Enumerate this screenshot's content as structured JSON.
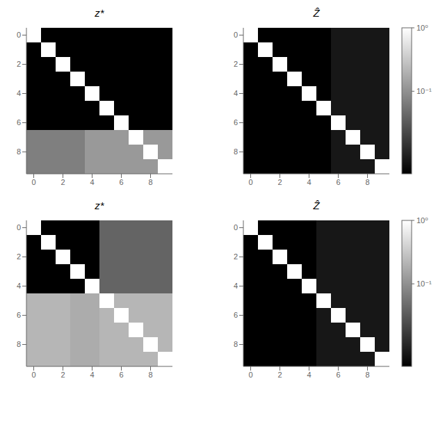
{
  "chart_data": [
    {
      "type": "heatmap",
      "title": "z*",
      "xlim": [
        -0.5,
        9.5
      ],
      "ylim": [
        9.5,
        -0.5
      ],
      "xticks": [
        0,
        2,
        4,
        6,
        8
      ],
      "yticks": [
        0,
        2,
        4,
        6,
        8
      ],
      "color_scale": {
        "range": [
          0.005,
          1.0
        ],
        "log": true
      },
      "cells": [
        [
          1.0,
          0.005,
          0.005,
          0.005,
          0.005,
          0.005,
          0.005,
          0.005,
          0.005,
          0.005
        ],
        [
          0.005,
          1.0,
          0.005,
          0.005,
          0.005,
          0.005,
          0.005,
          0.005,
          0.005,
          0.005
        ],
        [
          0.005,
          0.005,
          1.0,
          0.005,
          0.005,
          0.005,
          0.005,
          0.005,
          0.005,
          0.005
        ],
        [
          0.005,
          0.005,
          0.005,
          1.0,
          0.005,
          0.005,
          0.005,
          0.005,
          0.005,
          0.005
        ],
        [
          0.005,
          0.005,
          0.005,
          0.005,
          1.0,
          0.005,
          0.005,
          0.005,
          0.005,
          0.005
        ],
        [
          0.005,
          0.005,
          0.005,
          0.005,
          0.005,
          1.0,
          0.005,
          0.005,
          0.005,
          0.005
        ],
        [
          0.005,
          0.005,
          0.005,
          0.005,
          0.005,
          0.005,
          1.0,
          0.005,
          0.005,
          0.005
        ],
        [
          0.07,
          0.07,
          0.07,
          0.07,
          0.12,
          0.12,
          0.12,
          1.0,
          0.12,
          0.12
        ],
        [
          0.07,
          0.07,
          0.07,
          0.07,
          0.12,
          0.12,
          0.12,
          0.12,
          1.0,
          0.12
        ],
        [
          0.07,
          0.07,
          0.07,
          0.07,
          0.12,
          0.12,
          0.12,
          0.12,
          0.12,
          1.0
        ]
      ]
    },
    {
      "type": "heatmap",
      "title": "Ẑ",
      "xlim": [
        -0.5,
        9.5
      ],
      "ylim": [
        9.5,
        -0.5
      ],
      "xticks": [
        0,
        2,
        4,
        6,
        8
      ],
      "yticks": [
        0,
        2,
        4,
        6,
        8
      ],
      "color_scale": {
        "range": [
          0.005,
          1.0
        ],
        "log": true,
        "ticks": [
          {
            "value": 0.1,
            "label": "10⁻¹"
          },
          {
            "value": 1.0,
            "label": "10⁰"
          }
        ]
      },
      "cells": [
        [
          1.0,
          0.005,
          0.005,
          0.005,
          0.005,
          0.005,
          0.008,
          0.008,
          0.008,
          0.008
        ],
        [
          0.005,
          1.0,
          0.005,
          0.005,
          0.005,
          0.005,
          0.008,
          0.008,
          0.008,
          0.008
        ],
        [
          0.005,
          0.005,
          1.0,
          0.005,
          0.005,
          0.005,
          0.008,
          0.008,
          0.008,
          0.008
        ],
        [
          0.005,
          0.005,
          0.005,
          1.0,
          0.005,
          0.005,
          0.008,
          0.008,
          0.008,
          0.008
        ],
        [
          0.005,
          0.005,
          0.005,
          0.005,
          1.0,
          0.005,
          0.008,
          0.008,
          0.008,
          0.008
        ],
        [
          0.005,
          0.005,
          0.005,
          0.005,
          0.005,
          1.0,
          0.008,
          0.008,
          0.008,
          0.008
        ],
        [
          0.005,
          0.005,
          0.005,
          0.005,
          0.005,
          0.005,
          1.0,
          0.008,
          0.008,
          0.008
        ],
        [
          0.005,
          0.005,
          0.005,
          0.005,
          0.005,
          0.005,
          0.008,
          1.0,
          0.008,
          0.008
        ],
        [
          0.005,
          0.005,
          0.005,
          0.005,
          0.005,
          0.005,
          0.008,
          0.008,
          1.0,
          0.008
        ],
        [
          0.005,
          0.005,
          0.005,
          0.005,
          0.005,
          0.005,
          0.008,
          0.008,
          0.008,
          1.0
        ]
      ]
    },
    {
      "type": "heatmap",
      "title": "z*",
      "xlim": [
        -0.5,
        9.5
      ],
      "ylim": [
        9.5,
        -0.5
      ],
      "xticks": [
        0,
        2,
        4,
        6,
        8
      ],
      "yticks": [
        0,
        2,
        4,
        6,
        8
      ],
      "color_scale": {
        "range": [
          0.005,
          1.0
        ],
        "log": true
      },
      "cells": [
        [
          1.0,
          0.005,
          0.005,
          0.005,
          0.005,
          0.04,
          0.04,
          0.04,
          0.04,
          0.04
        ],
        [
          0.005,
          1.0,
          0.005,
          0.005,
          0.005,
          0.04,
          0.04,
          0.04,
          0.04,
          0.04
        ],
        [
          0.005,
          0.005,
          1.0,
          0.005,
          0.005,
          0.04,
          0.04,
          0.04,
          0.04,
          0.04
        ],
        [
          0.005,
          0.005,
          0.005,
          1.0,
          0.005,
          0.04,
          0.04,
          0.04,
          0.04,
          0.04
        ],
        [
          0.005,
          0.005,
          0.005,
          0.005,
          1.0,
          0.04,
          0.04,
          0.04,
          0.04,
          0.04
        ],
        [
          0.22,
          0.22,
          0.22,
          0.18,
          0.18,
          1.0,
          0.22,
          0.22,
          0.22,
          0.22
        ],
        [
          0.22,
          0.22,
          0.22,
          0.18,
          0.18,
          0.22,
          1.0,
          0.22,
          0.22,
          0.22
        ],
        [
          0.22,
          0.22,
          0.22,
          0.18,
          0.18,
          0.22,
          0.22,
          1.0,
          0.22,
          0.22
        ],
        [
          0.22,
          0.22,
          0.22,
          0.18,
          0.18,
          0.22,
          0.22,
          0.22,
          1.0,
          0.22
        ],
        [
          0.22,
          0.22,
          0.22,
          0.18,
          0.18,
          0.22,
          0.22,
          0.22,
          0.22,
          1.0
        ]
      ]
    },
    {
      "type": "heatmap",
      "title": "Ẑ",
      "xlim": [
        -0.5,
        9.5
      ],
      "ylim": [
        9.5,
        -0.5
      ],
      "xticks": [
        0,
        2,
        4,
        6,
        8
      ],
      "yticks": [
        0,
        2,
        4,
        6,
        8
      ],
      "color_scale": {
        "range": [
          0.005,
          1.0
        ],
        "log": true,
        "ticks": [
          {
            "value": 0.1,
            "label": "10⁻¹"
          },
          {
            "value": 1.0,
            "label": "10⁰"
          }
        ]
      },
      "cells": [
        [
          1.0,
          0.005,
          0.005,
          0.005,
          0.005,
          0.008,
          0.008,
          0.008,
          0.008,
          0.008
        ],
        [
          0.005,
          1.0,
          0.005,
          0.005,
          0.005,
          0.008,
          0.008,
          0.008,
          0.008,
          0.008
        ],
        [
          0.005,
          0.005,
          1.0,
          0.005,
          0.005,
          0.008,
          0.008,
          0.008,
          0.008,
          0.008
        ],
        [
          0.005,
          0.005,
          0.005,
          1.0,
          0.005,
          0.008,
          0.008,
          0.008,
          0.008,
          0.008
        ],
        [
          0.005,
          0.005,
          0.005,
          0.005,
          1.0,
          0.008,
          0.008,
          0.008,
          0.008,
          0.008
        ],
        [
          0.005,
          0.005,
          0.005,
          0.005,
          0.005,
          1.0,
          0.008,
          0.008,
          0.008,
          0.008
        ],
        [
          0.005,
          0.005,
          0.005,
          0.005,
          0.005,
          0.008,
          1.0,
          0.008,
          0.008,
          0.008
        ],
        [
          0.005,
          0.005,
          0.005,
          0.005,
          0.005,
          0.008,
          0.008,
          1.0,
          0.008,
          0.008
        ],
        [
          0.005,
          0.005,
          0.005,
          0.005,
          0.005,
          0.008,
          0.008,
          0.008,
          1.0,
          0.008
        ],
        [
          0.005,
          0.005,
          0.005,
          0.005,
          0.005,
          0.008,
          0.008,
          0.008,
          0.008,
          1.0
        ]
      ]
    }
  ]
}
